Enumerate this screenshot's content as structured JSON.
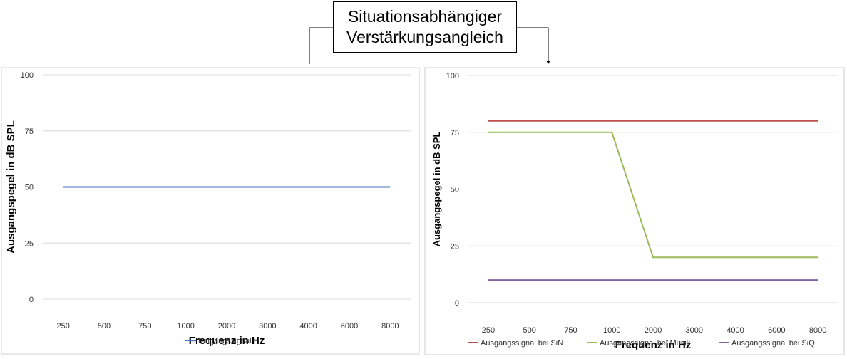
{
  "title": {
    "line1": "Situationsabhängiger",
    "line2": "Verstärkungsangleich"
  },
  "colors": {
    "grid": "#d9d9d9",
    "frame": "#d0d0d0",
    "text": "#333333",
    "axis_title": "#000000"
  },
  "chart_data": [
    {
      "type": "line",
      "categories": [
        "250",
        "500",
        "750",
        "1000",
        "2000",
        "3000",
        "4000",
        "6000",
        "8000"
      ],
      "xlabel": "Frequenz in Hz",
      "ylabel": "Ausgangspegel in dB SPL",
      "ylim": [
        0,
        100
      ],
      "yticks": [
        0,
        25,
        50,
        75,
        100
      ],
      "grid": true,
      "legend": "bottom",
      "series": [
        {
          "name": "Eingangssignal",
          "color": "#4472c4",
          "values": [
            50,
            50,
            50,
            50,
            50,
            50,
            50,
            50,
            50
          ]
        }
      ]
    },
    {
      "type": "line",
      "categories": [
        "250",
        "500",
        "750",
        "1000",
        "2000",
        "3000",
        "4000",
        "6000",
        "8000"
      ],
      "xlabel": "Frequenz in Hz",
      "ylabel": "Ausgangspegel in dB SPL",
      "ylim": [
        0,
        100
      ],
      "yticks": [
        0,
        25,
        50,
        75,
        100
      ],
      "grid": true,
      "legend": "bottom",
      "series": [
        {
          "name": "Ausgangssignal bei SiN",
          "color": "#c0504d",
          "values": [
            80,
            80,
            80,
            80,
            80,
            80,
            80,
            80,
            80
          ]
        },
        {
          "name": "Ausgangssignal bei Musik",
          "color": "#9bbb59",
          "values": [
            75,
            75,
            75,
            75,
            20,
            20,
            20,
            20,
            20
          ]
        },
        {
          "name": "Ausgangssignal bei SiQ",
          "color": "#8064a2",
          "values": [
            10,
            10,
            10,
            10,
            10,
            10,
            10,
            10,
            10
          ]
        }
      ]
    }
  ]
}
